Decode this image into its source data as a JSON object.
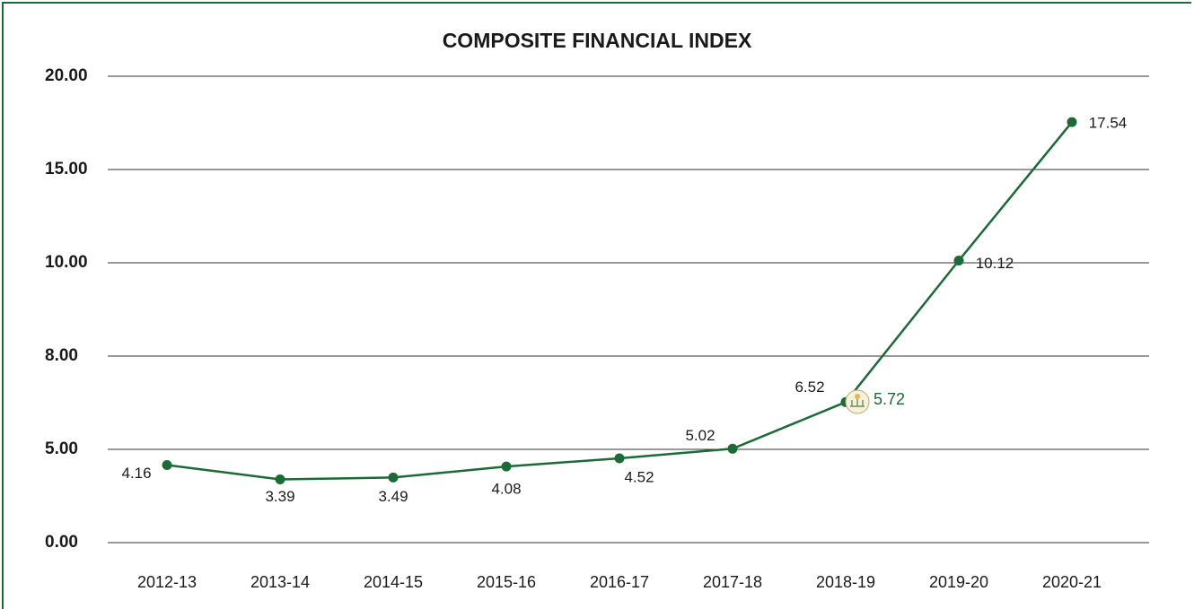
{
  "chart_data": {
    "type": "line",
    "title": "COMPOSITE FINANCIAL INDEX",
    "categories": [
      "2012-13",
      "2013-14",
      "2014-15",
      "2015-16",
      "2016-17",
      "2017-18",
      "2018-19",
      "2019-20",
      "2020-21"
    ],
    "values": [
      4.16,
      3.39,
      3.49,
      4.08,
      4.52,
      5.02,
      6.52,
      10.12,
      17.54
    ],
    "color": "#1a6b35",
    "annotation": {
      "value": 5.72
    },
    "ylim": [
      0,
      20
    ],
    "yticks": [
      {
        "value": 0,
        "label": "0.00"
      },
      {
        "value": 5,
        "label": "5.00"
      },
      {
        "value": 8,
        "label": "8.00"
      },
      {
        "value": 10,
        "label": "10.00"
      },
      {
        "value": 15,
        "label": "15.00"
      },
      {
        "value": 20,
        "label": "20.00"
      }
    ],
    "grid": true
  }
}
